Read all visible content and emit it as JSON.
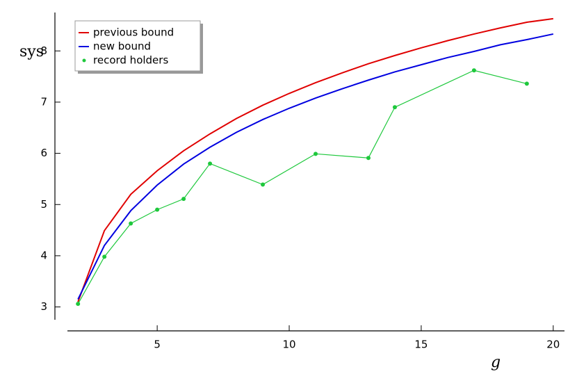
{
  "chart_data": {
    "type": "line",
    "x_label": "g",
    "y_label": "sys",
    "xlim": [
      1.6,
      20.4
    ],
    "ylim": [
      2.75,
      8.75
    ],
    "xticks": [
      5,
      10,
      15,
      20
    ],
    "yticks": [
      3,
      4,
      5,
      6,
      7,
      8
    ],
    "legend": "upper left",
    "series": [
      {
        "name": "previous bound",
        "color": "#e00000",
        "markers": false,
        "x": [
          2,
          3,
          4,
          5,
          6,
          7,
          8,
          9,
          10,
          11,
          12,
          13,
          14,
          15,
          16,
          17,
          18,
          19,
          20
        ],
        "values": [
          3.1,
          4.49,
          5.2,
          5.66,
          6.05,
          6.38,
          6.68,
          6.94,
          7.17,
          7.38,
          7.57,
          7.75,
          7.91,
          8.06,
          8.2,
          8.33,
          8.45,
          8.56,
          8.63
        ]
      },
      {
        "name": "new bound",
        "color": "#0000e0",
        "markers": false,
        "x": [
          2,
          3,
          4,
          5,
          6,
          7,
          8,
          9,
          10,
          11,
          12,
          13,
          14,
          15,
          16,
          17,
          18,
          19,
          20
        ],
        "values": [
          3.15,
          4.2,
          4.88,
          5.38,
          5.79,
          6.12,
          6.41,
          6.66,
          6.88,
          7.08,
          7.26,
          7.43,
          7.59,
          7.73,
          7.87,
          7.99,
          8.12,
          8.22,
          8.33
        ]
      },
      {
        "name": "record holders",
        "color": "#1ec83c",
        "markers": true,
        "x": [
          2,
          3,
          4,
          5,
          6,
          7,
          9,
          11,
          13,
          14,
          17,
          19
        ],
        "values": [
          3.06,
          3.98,
          4.63,
          4.9,
          5.11,
          5.8,
          5.39,
          5.99,
          5.91,
          6.9,
          7.62,
          7.36
        ]
      }
    ]
  }
}
